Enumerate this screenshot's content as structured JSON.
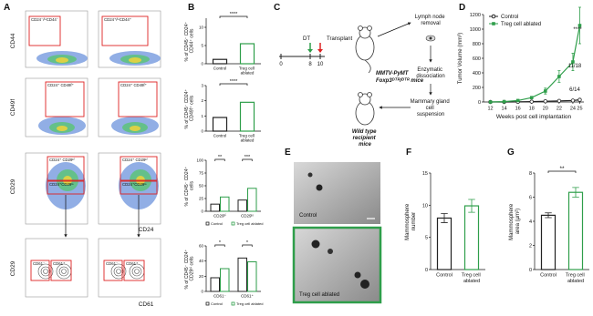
{
  "panel_labels": [
    "A",
    "B",
    "C",
    "D",
    "E",
    "F",
    "G"
  ],
  "panel_a": {
    "y_labels": [
      "CD44",
      "CD49f",
      "CD29",
      "CD29"
    ],
    "x_labels": [
      "CD24",
      "CD61"
    ],
    "gates": [
      "CD24⁻/ˡᵒCD44⁻",
      "CD24⁺/ˡᵒCD44⁺",
      "CD24⁺ CD49f⁺",
      "CD24⁺ CD49f⁺",
      "CD24⁺ CD29ʰⁱ",
      "CD24⁺CD29ˡᵒ",
      "CD24⁺ CD29ʰⁱ",
      "CD24⁺CD29ˡᵒ",
      "CD61⁻",
      "CD61⁺",
      "CD61⁻",
      "CD61⁺"
    ]
  },
  "panel_c": {
    "timeline_ticks": [
      0,
      8,
      10
    ],
    "dt": "DT",
    "transplant": "Transplant",
    "donor_line1": "MMTV-PyMT",
    "donor_line2": "Foxp3ᴰᵀᴿ/ᴰᵀᴿ mice",
    "steps": [
      "Lymph node removal",
      "Enzymatic dissociation",
      "Mammary gland cell suspension"
    ],
    "recipient": "Wild type recipient mice"
  },
  "panel_e": {
    "labels": [
      "Control",
      "Treg cell ablated"
    ]
  },
  "chart_data": [
    {
      "type": "bar",
      "y_label": "% of CD45⁻ CD24⁺ CD44⁺ cells",
      "categories": [
        "Control",
        "Treg cell ablated"
      ],
      "values": [
        1.2,
        5.5
      ],
      "colors": [
        "#222222",
        "#2e9e4a"
      ],
      "ylim": [
        0,
        12.5
      ],
      "yticks": [
        0,
        5,
        10
      ],
      "significance": "****"
    },
    {
      "type": "bar",
      "y_label": "% of CD45⁻ CD24⁺ CD49f⁺ cells",
      "categories": [
        "Control",
        "Treg cell ablated"
      ],
      "values": [
        0.9,
        1.9
      ],
      "colors": [
        "#222222",
        "#2e9e4a"
      ],
      "ylim": [
        0,
        3
      ],
      "yticks": [
        0,
        1,
        2,
        3
      ],
      "significance": "****"
    },
    {
      "type": "grouped_bar",
      "y_label": "% of CD45⁻ CD24⁺ cells",
      "categories": [
        "CD29ʰⁱ",
        "CD29ˡᵒ"
      ],
      "series": [
        {
          "name": "Control",
          "color": "#222222",
          "values": [
            14,
            22
          ]
        },
        {
          "name": "Treg cell ablated",
          "color": "#2e9e4a",
          "values": [
            28,
            45
          ]
        }
      ],
      "ylim": [
        0,
        100
      ],
      "yticks": [
        0,
        25,
        50,
        75,
        100
      ],
      "significance": [
        "**",
        "***"
      ]
    },
    {
      "type": "grouped_bar",
      "y_label": "% of CD45⁻ CD24⁺ CD29ʰⁱ cells",
      "categories": [
        "CD61⁻",
        "CD61⁺"
      ],
      "series": [
        {
          "name": "Control",
          "color": "#222222",
          "values": [
            18,
            44
          ]
        },
        {
          "name": "Treg cell ablated",
          "color": "#2e9e4a",
          "values": [
            30,
            39
          ]
        }
      ],
      "ylim": [
        0,
        60
      ],
      "yticks": [
        0,
        20,
        40,
        60
      ],
      "significance": [
        "*",
        "*"
      ]
    },
    {
      "type": "line",
      "y_label": "Tumor Volume (mm³)",
      "x_label": "Weeks post cell implantation",
      "x": [
        12,
        14,
        16,
        18,
        20,
        22,
        24,
        25
      ],
      "xlim": [
        11,
        25.6
      ],
      "xticks": [
        12,
        14,
        16,
        18,
        20,
        22,
        24,
        25
      ],
      "series": [
        {
          "name": "Control",
          "color": "#222222",
          "values": [
            0,
            0,
            2,
            5,
            10,
            15,
            20,
            30
          ],
          "errors": [
            0,
            0,
            1,
            2,
            3,
            5,
            6,
            8
          ]
        },
        {
          "name": "Treg cell ablated",
          "color": "#2e9e4a",
          "values": [
            0,
            5,
            20,
            60,
            150,
            350,
            550,
            1050
          ],
          "errors": [
            0,
            2,
            5,
            15,
            40,
            80,
            120,
            250
          ]
        }
      ],
      "ylim": [
        0,
        1200
      ],
      "yticks": [
        0,
        200,
        400,
        600,
        800,
        1000,
        1200
      ],
      "annotations": [
        "****",
        "11/18",
        "6/14"
      ]
    },
    {
      "type": "bar",
      "y_label": "Mammosphere number",
      "categories": [
        "Control",
        "Treg cell ablated"
      ],
      "values": [
        8,
        9.9
      ],
      "errors": [
        0.7,
        1.0
      ],
      "colors": [
        "#222222",
        "#2e9e4a"
      ],
      "ylim": [
        0,
        15
      ],
      "yticks": [
        0,
        5,
        10,
        15
      ]
    },
    {
      "type": "bar",
      "y_label": "Mammosphere area (µm²)",
      "categories": [
        "Control",
        "Treg cell ablated"
      ],
      "values": [
        4.5,
        6.4
      ],
      "errors": [
        0.2,
        0.4
      ],
      "colors": [
        "#222222",
        "#2e9e4a"
      ],
      "ylim": [
        0,
        8
      ],
      "yticks": [
        0,
        2,
        4,
        6,
        8
      ],
      "significance": "**"
    }
  ]
}
